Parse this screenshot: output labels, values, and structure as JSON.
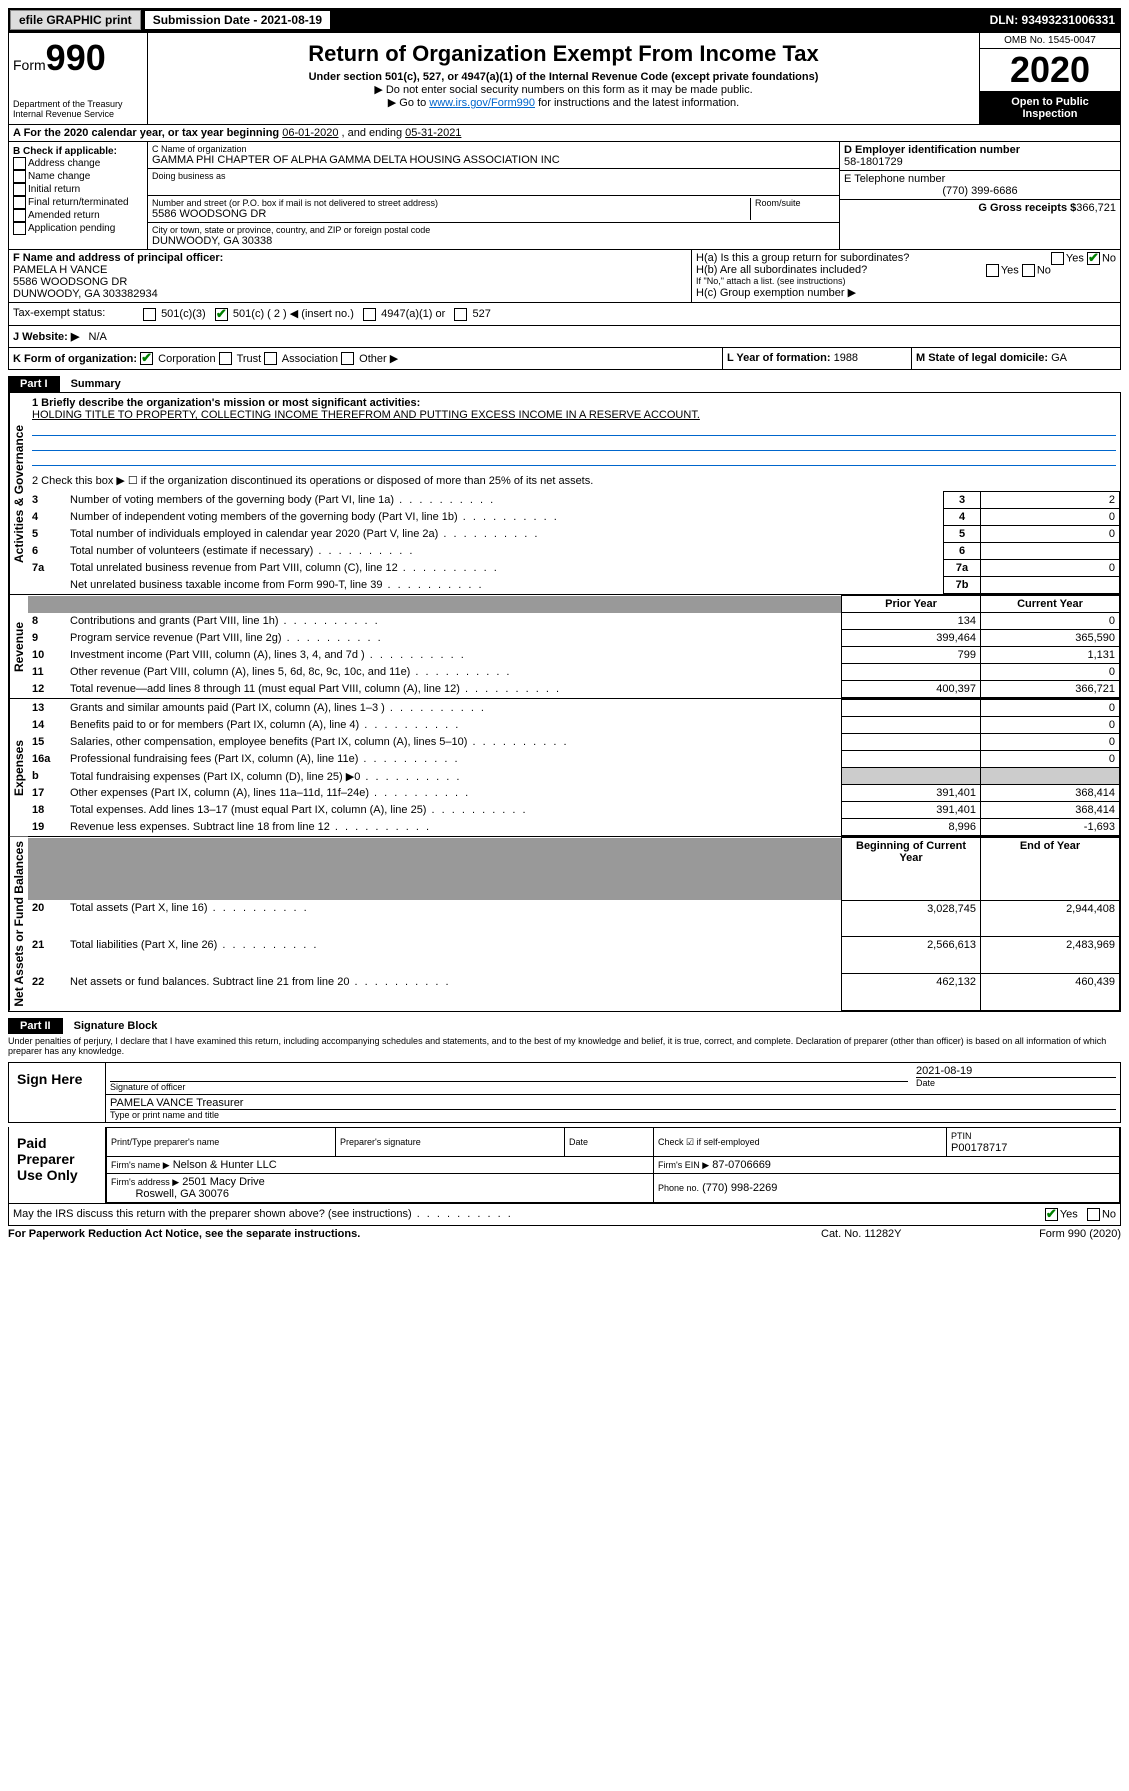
{
  "topbar": {
    "efile": "efile GRAPHIC print",
    "sub_label": "Submission Date - 2021-08-19",
    "dln": "DLN: 93493231006331"
  },
  "header": {
    "form_word": "Form",
    "form_num": "990",
    "dept": "Department of the Treasury\nInternal Revenue Service",
    "title": "Return of Organization Exempt From Income Tax",
    "subtitle": "Under section 501(c), 527, or 4947(a)(1) of the Internal Revenue Code (except private foundations)",
    "note1": "▶ Do not enter social security numbers on this form as it may be made public.",
    "note2_pre": "▶ Go to ",
    "note2_link": "www.irs.gov/Form990",
    "note2_post": " for instructions and the latest information.",
    "omb": "OMB No. 1545-0047",
    "year": "2020",
    "open": "Open to Public Inspection"
  },
  "period": {
    "label": "A For the 2020 calendar year, or tax year beginning ",
    "begin": "06-01-2020",
    "mid": " , and ending ",
    "end": "05-31-2021"
  },
  "boxB": {
    "label": "B Check if applicable:",
    "items": [
      "Address change",
      "Name change",
      "Initial return",
      "Final return/terminated",
      "Amended return",
      "Application pending"
    ]
  },
  "boxC": {
    "name_label": "C Name of organization",
    "name": "GAMMA PHI CHAPTER OF ALPHA GAMMA DELTA HOUSING ASSOCIATION INC",
    "dba_label": "Doing business as",
    "addr_label": "Number and street (or P.O. box if mail is not delivered to street address)",
    "room_label": "Room/suite",
    "addr": "5586 WOODSONG DR",
    "city_label": "City or town, state or province, country, and ZIP or foreign postal code",
    "city": "DUNWOODY, GA  30338"
  },
  "boxD": {
    "label": "D Employer identification number",
    "value": "58-1801729"
  },
  "boxE": {
    "label": "E Telephone number",
    "value": "(770) 399-6686"
  },
  "boxG": {
    "label": "G Gross receipts $",
    "value": "366,721"
  },
  "boxF": {
    "label": "F  Name and address of principal officer:",
    "name": "PAMELA H VANCE",
    "addr1": "5586 WOODSONG DR",
    "addr2": "DUNWOODY, GA  303382934"
  },
  "boxH": {
    "a": "H(a)  Is this a group return for subordinates?",
    "b": "H(b)  Are all subordinates included?",
    "b_note": "If \"No,\" attach a list. (see instructions)",
    "c": "H(c)  Group exemption number ▶",
    "yes": "Yes",
    "no": "No"
  },
  "taxstatus": {
    "label": "Tax-exempt status:",
    "opt1": "501(c)(3)",
    "opt2": "501(c) ( 2 ) ◀ (insert no.)",
    "opt3": "4947(a)(1) or",
    "opt4": "527"
  },
  "websiteJ": {
    "label": "J   Website: ▶",
    "value": "N/A"
  },
  "rowK": {
    "k": "K Form of organization:",
    "corp": "Corporation",
    "trust": "Trust",
    "assoc": "Association",
    "other": "Other ▶",
    "l_label": "L Year of formation:",
    "l_value": "1988",
    "m_label": "M State of legal domicile:",
    "m_value": "GA"
  },
  "part1": {
    "header": "Part I",
    "title": "Summary",
    "vert_gov": "Activities & Governance",
    "vert_rev": "Revenue",
    "vert_exp": "Expenses",
    "vert_net": "Net Assets or Fund Balances",
    "line1_label": "1  Briefly describe the organization's mission or most significant activities:",
    "line1_text": "HOLDING TITLE TO PROPERTY, COLLECTING INCOME THEREFROM AND PUTTING EXCESS INCOME IN A RESERVE ACCOUNT.",
    "line2": "2   Check this box ▶ ☐  if the organization discontinued its operations or disposed of more than 25% of its net assets.",
    "rows_gov": [
      {
        "n": "3",
        "label": "Number of voting members of the governing body (Part VI, line 1a)",
        "box": "3",
        "val": "2"
      },
      {
        "n": "4",
        "label": "Number of independent voting members of the governing body (Part VI, line 1b)",
        "box": "4",
        "val": "0"
      },
      {
        "n": "5",
        "label": "Total number of individuals employed in calendar year 2020 (Part V, line 2a)",
        "box": "5",
        "val": "0"
      },
      {
        "n": "6",
        "label": "Total number of volunteers (estimate if necessary)",
        "box": "6",
        "val": ""
      },
      {
        "n": "7a",
        "label": "Total unrelated business revenue from Part VIII, column (C), line 12",
        "box": "7a",
        "val": "0"
      },
      {
        "n": "",
        "label": "Net unrelated business taxable income from Form 990-T, line 39",
        "box": "7b",
        "val": ""
      }
    ],
    "col_prior": "Prior Year",
    "col_current": "Current Year",
    "rows_rev": [
      {
        "n": "8",
        "label": "Contributions and grants (Part VIII, line 1h)",
        "prior": "134",
        "curr": "0"
      },
      {
        "n": "9",
        "label": "Program service revenue (Part VIII, line 2g)",
        "prior": "399,464",
        "curr": "365,590"
      },
      {
        "n": "10",
        "label": "Investment income (Part VIII, column (A), lines 3, 4, and 7d )",
        "prior": "799",
        "curr": "1,131"
      },
      {
        "n": "11",
        "label": "Other revenue (Part VIII, column (A), lines 5, 6d, 8c, 9c, 10c, and 11e)",
        "prior": "",
        "curr": "0"
      },
      {
        "n": "12",
        "label": "Total revenue—add lines 8 through 11 (must equal Part VIII, column (A), line 12)",
        "prior": "400,397",
        "curr": "366,721"
      }
    ],
    "rows_exp": [
      {
        "n": "13",
        "label": "Grants and similar amounts paid (Part IX, column (A), lines 1–3 )",
        "prior": "",
        "curr": "0"
      },
      {
        "n": "14",
        "label": "Benefits paid to or for members (Part IX, column (A), line 4)",
        "prior": "",
        "curr": "0"
      },
      {
        "n": "15",
        "label": "Salaries, other compensation, employee benefits (Part IX, column (A), lines 5–10)",
        "prior": "",
        "curr": "0"
      },
      {
        "n": "16a",
        "label": "Professional fundraising fees (Part IX, column (A), line 11e)",
        "prior": "",
        "curr": "0"
      },
      {
        "n": "b",
        "label": "Total fundraising expenses (Part IX, column (D), line 25) ▶0",
        "prior": "GRAY",
        "curr": "GRAY"
      },
      {
        "n": "17",
        "label": "Other expenses (Part IX, column (A), lines 11a–11d, 11f–24e)",
        "prior": "391,401",
        "curr": "368,414"
      },
      {
        "n": "18",
        "label": "Total expenses. Add lines 13–17 (must equal Part IX, column (A), line 25)",
        "prior": "391,401",
        "curr": "368,414"
      },
      {
        "n": "19",
        "label": "Revenue less expenses. Subtract line 18 from line 12",
        "prior": "8,996",
        "curr": "-1,693"
      }
    ],
    "col_begin": "Beginning of Current Year",
    "col_end": "End of Year",
    "rows_net": [
      {
        "n": "20",
        "label": "Total assets (Part X, line 16)",
        "prior": "3,028,745",
        "curr": "2,944,408"
      },
      {
        "n": "21",
        "label": "Total liabilities (Part X, line 26)",
        "prior": "2,566,613",
        "curr": "2,483,969"
      },
      {
        "n": "22",
        "label": "Net assets or fund balances. Subtract line 21 from line 20",
        "prior": "462,132",
        "curr": "460,439"
      }
    ]
  },
  "part2": {
    "header": "Part II",
    "title": "Signature Block",
    "declaration": "Under penalties of perjury, I declare that I have examined this return, including accompanying schedules and statements, and to the best of my knowledge and belief, it is true, correct, and complete. Declaration of preparer (other than officer) is based on all information of which preparer has any knowledge.",
    "sign_here": "Sign Here",
    "sig_officer": "Signature of officer",
    "sig_date": "2021-08-19",
    "date_label": "Date",
    "officer_name": "PAMELA VANCE Treasurer",
    "type_name": "Type or print name and title",
    "paid": "Paid Preparer Use Only",
    "prep_name_label": "Print/Type preparer's name",
    "prep_sig_label": "Preparer's signature",
    "prep_date_label": "Date",
    "self_emp": "Check ☑ if self-employed",
    "ptin_label": "PTIN",
    "ptin": "P00178717",
    "firm_name_label": "Firm's name    ▶",
    "firm_name": "Nelson & Hunter LLC",
    "firm_ein_label": "Firm's EIN ▶",
    "firm_ein": "87-0706669",
    "firm_addr_label": "Firm's address ▶",
    "firm_addr1": "2501 Macy Drive",
    "firm_addr2": "Roswell, GA  30076",
    "phone_label": "Phone no.",
    "phone": "(770) 998-2269",
    "discuss": "May the IRS discuss this return with the preparer shown above? (see instructions)",
    "yes": "Yes",
    "no": "No"
  },
  "footer": {
    "paperwork": "For Paperwork Reduction Act Notice, see the separate instructions.",
    "cat": "Cat. No. 11282Y",
    "form": "Form 990 (2020)"
  }
}
